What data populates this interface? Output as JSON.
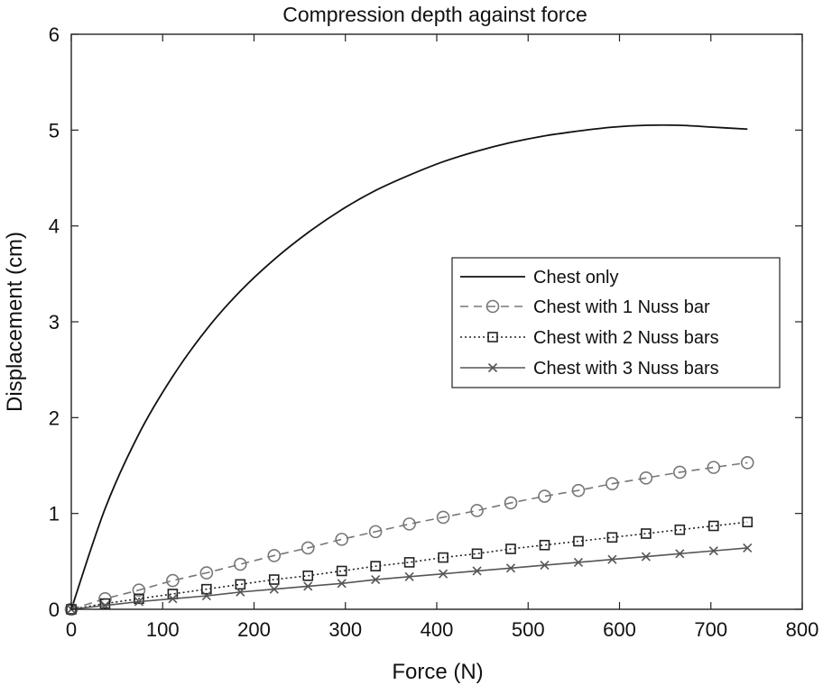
{
  "chart_data": {
    "type": "line",
    "title": "Compression depth against force",
    "xlabel": "Force (N)",
    "ylabel": "Displacement (cm)",
    "xlim": [
      0,
      800
    ],
    "ylim": [
      0,
      6
    ],
    "xticks": [
      0,
      100,
      200,
      300,
      400,
      500,
      600,
      700,
      800
    ],
    "yticks": [
      0,
      1,
      2,
      3,
      4,
      5,
      6
    ],
    "grid": false,
    "legend_position": "right",
    "x": [
      0,
      37,
      74,
      111,
      148,
      185,
      222,
      259,
      296,
      333,
      370,
      407,
      444,
      481,
      518,
      555,
      592,
      629,
      666,
      703,
      740
    ],
    "series": [
      {
        "name": "Chest only",
        "style": "solid",
        "marker": "none",
        "color": "#111111",
        "values": [
          0.0,
          1.05,
          1.83,
          2.43,
          2.92,
          3.32,
          3.65,
          3.93,
          4.17,
          4.37,
          4.53,
          4.67,
          4.78,
          4.87,
          4.94,
          4.99,
          5.03,
          5.05,
          5.05,
          5.03,
          5.01
        ]
      },
      {
        "name": "Chest with 1 Nuss bar",
        "style": "dashed",
        "marker": "circle",
        "color": "#777777",
        "values": [
          0.0,
          0.11,
          0.2,
          0.3,
          0.38,
          0.47,
          0.56,
          0.64,
          0.73,
          0.81,
          0.89,
          0.96,
          1.03,
          1.11,
          1.18,
          1.24,
          1.31,
          1.37,
          1.43,
          1.48,
          1.53
        ]
      },
      {
        "name": "Chest with 2 Nuss bars",
        "style": "dotted",
        "marker": "square",
        "color": "#222222",
        "values": [
          0.0,
          0.06,
          0.11,
          0.16,
          0.21,
          0.26,
          0.31,
          0.35,
          0.4,
          0.45,
          0.49,
          0.54,
          0.58,
          0.63,
          0.67,
          0.71,
          0.75,
          0.79,
          0.83,
          0.87,
          0.91
        ]
      },
      {
        "name": "Chest with 3 Nuss bars",
        "style": "solid",
        "marker": "x",
        "color": "#555555",
        "values": [
          0.0,
          0.04,
          0.08,
          0.11,
          0.14,
          0.18,
          0.21,
          0.24,
          0.27,
          0.31,
          0.34,
          0.37,
          0.4,
          0.43,
          0.46,
          0.49,
          0.52,
          0.55,
          0.58,
          0.61,
          0.64
        ]
      }
    ]
  }
}
